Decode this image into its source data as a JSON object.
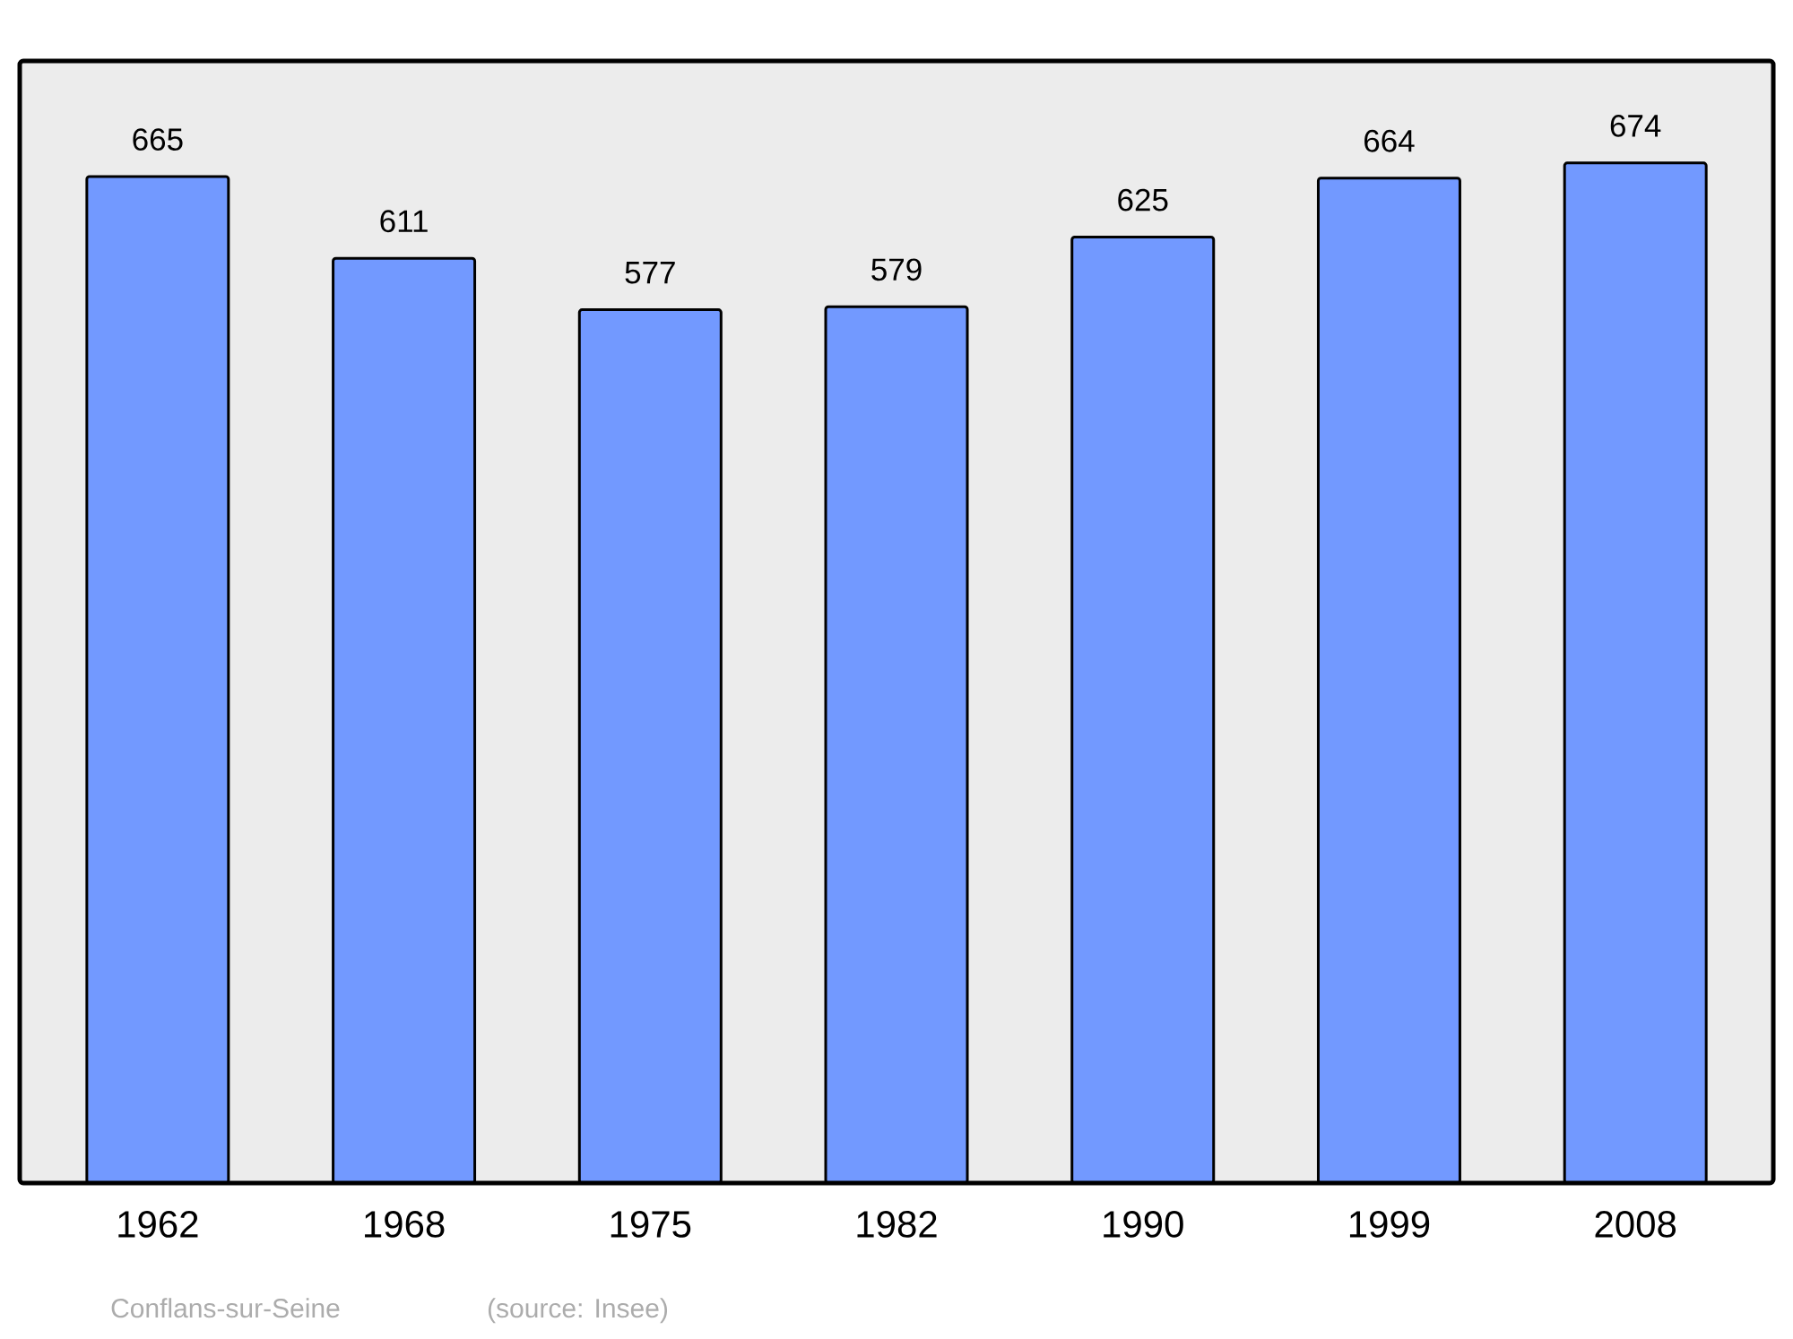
{
  "chart_data": {
    "type": "bar",
    "categories": [
      "1962",
      "1968",
      "1975",
      "1982",
      "1990",
      "1999",
      "2008"
    ],
    "values": [
      665,
      611,
      577,
      579,
      625,
      664,
      674
    ],
    "color": "#7299ff",
    "data_labels": true,
    "annotations": [
      "Conflans-sur-Seine",
      "(source: Insee)"
    ]
  }
}
